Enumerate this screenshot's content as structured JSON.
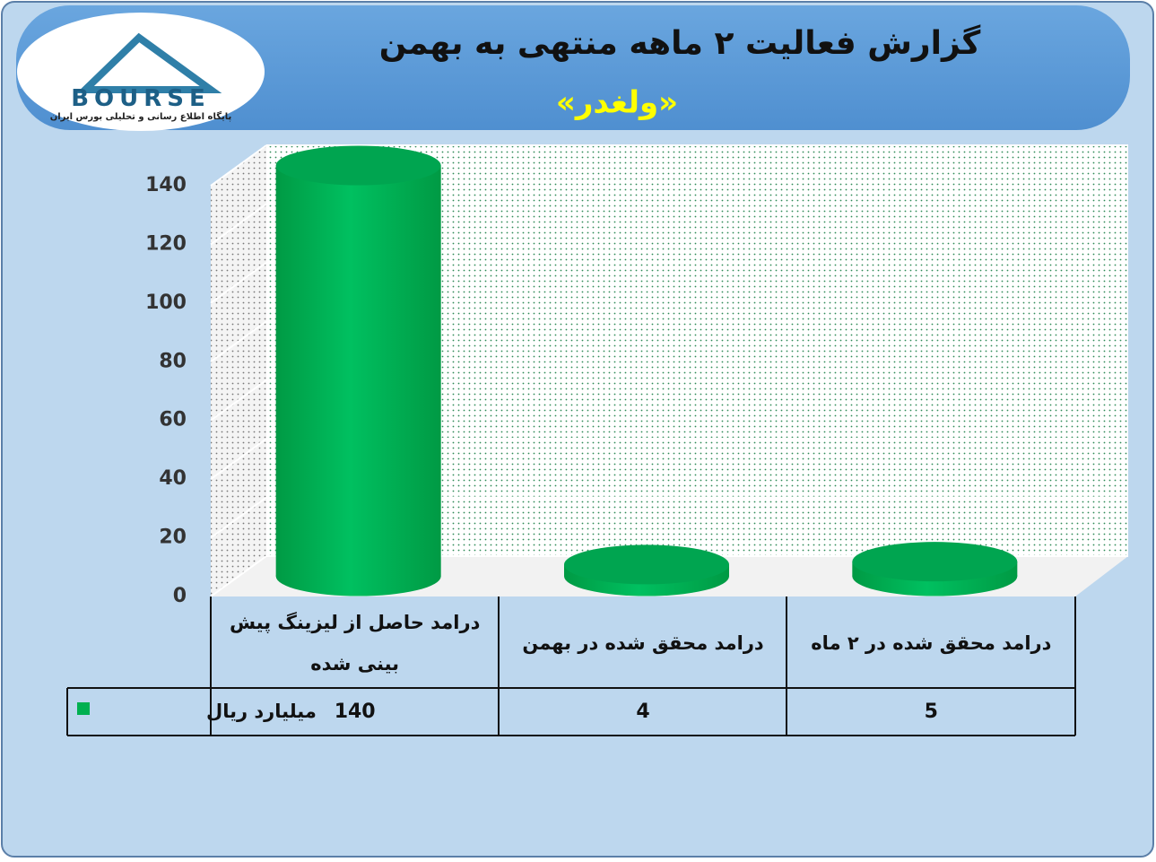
{
  "logo": {
    "text": "BOURSE",
    "tagline": "پایگاه اطلاع رسانی و تحلیلی بورس ایران"
  },
  "chart_data": {
    "type": "bar",
    "title": "گزارش فعالیت ۲ ماهه منتهی به بهمن",
    "subtitle": "«ولغدر»",
    "categories": [
      "درامد حاصل از لیزینگ پیش بینی شده",
      "درامد محقق شده در بهمن",
      "درامد محقق شده در ۲ ماه"
    ],
    "series": [
      {
        "name": "میلیارد ریال",
        "color": "#00b050",
        "values": [
          140,
          4,
          5
        ]
      }
    ],
    "ylim": [
      0,
      140
    ],
    "yticks": [
      0,
      20,
      40,
      60,
      80,
      100,
      120,
      140
    ],
    "grid": true,
    "data_table": true
  }
}
